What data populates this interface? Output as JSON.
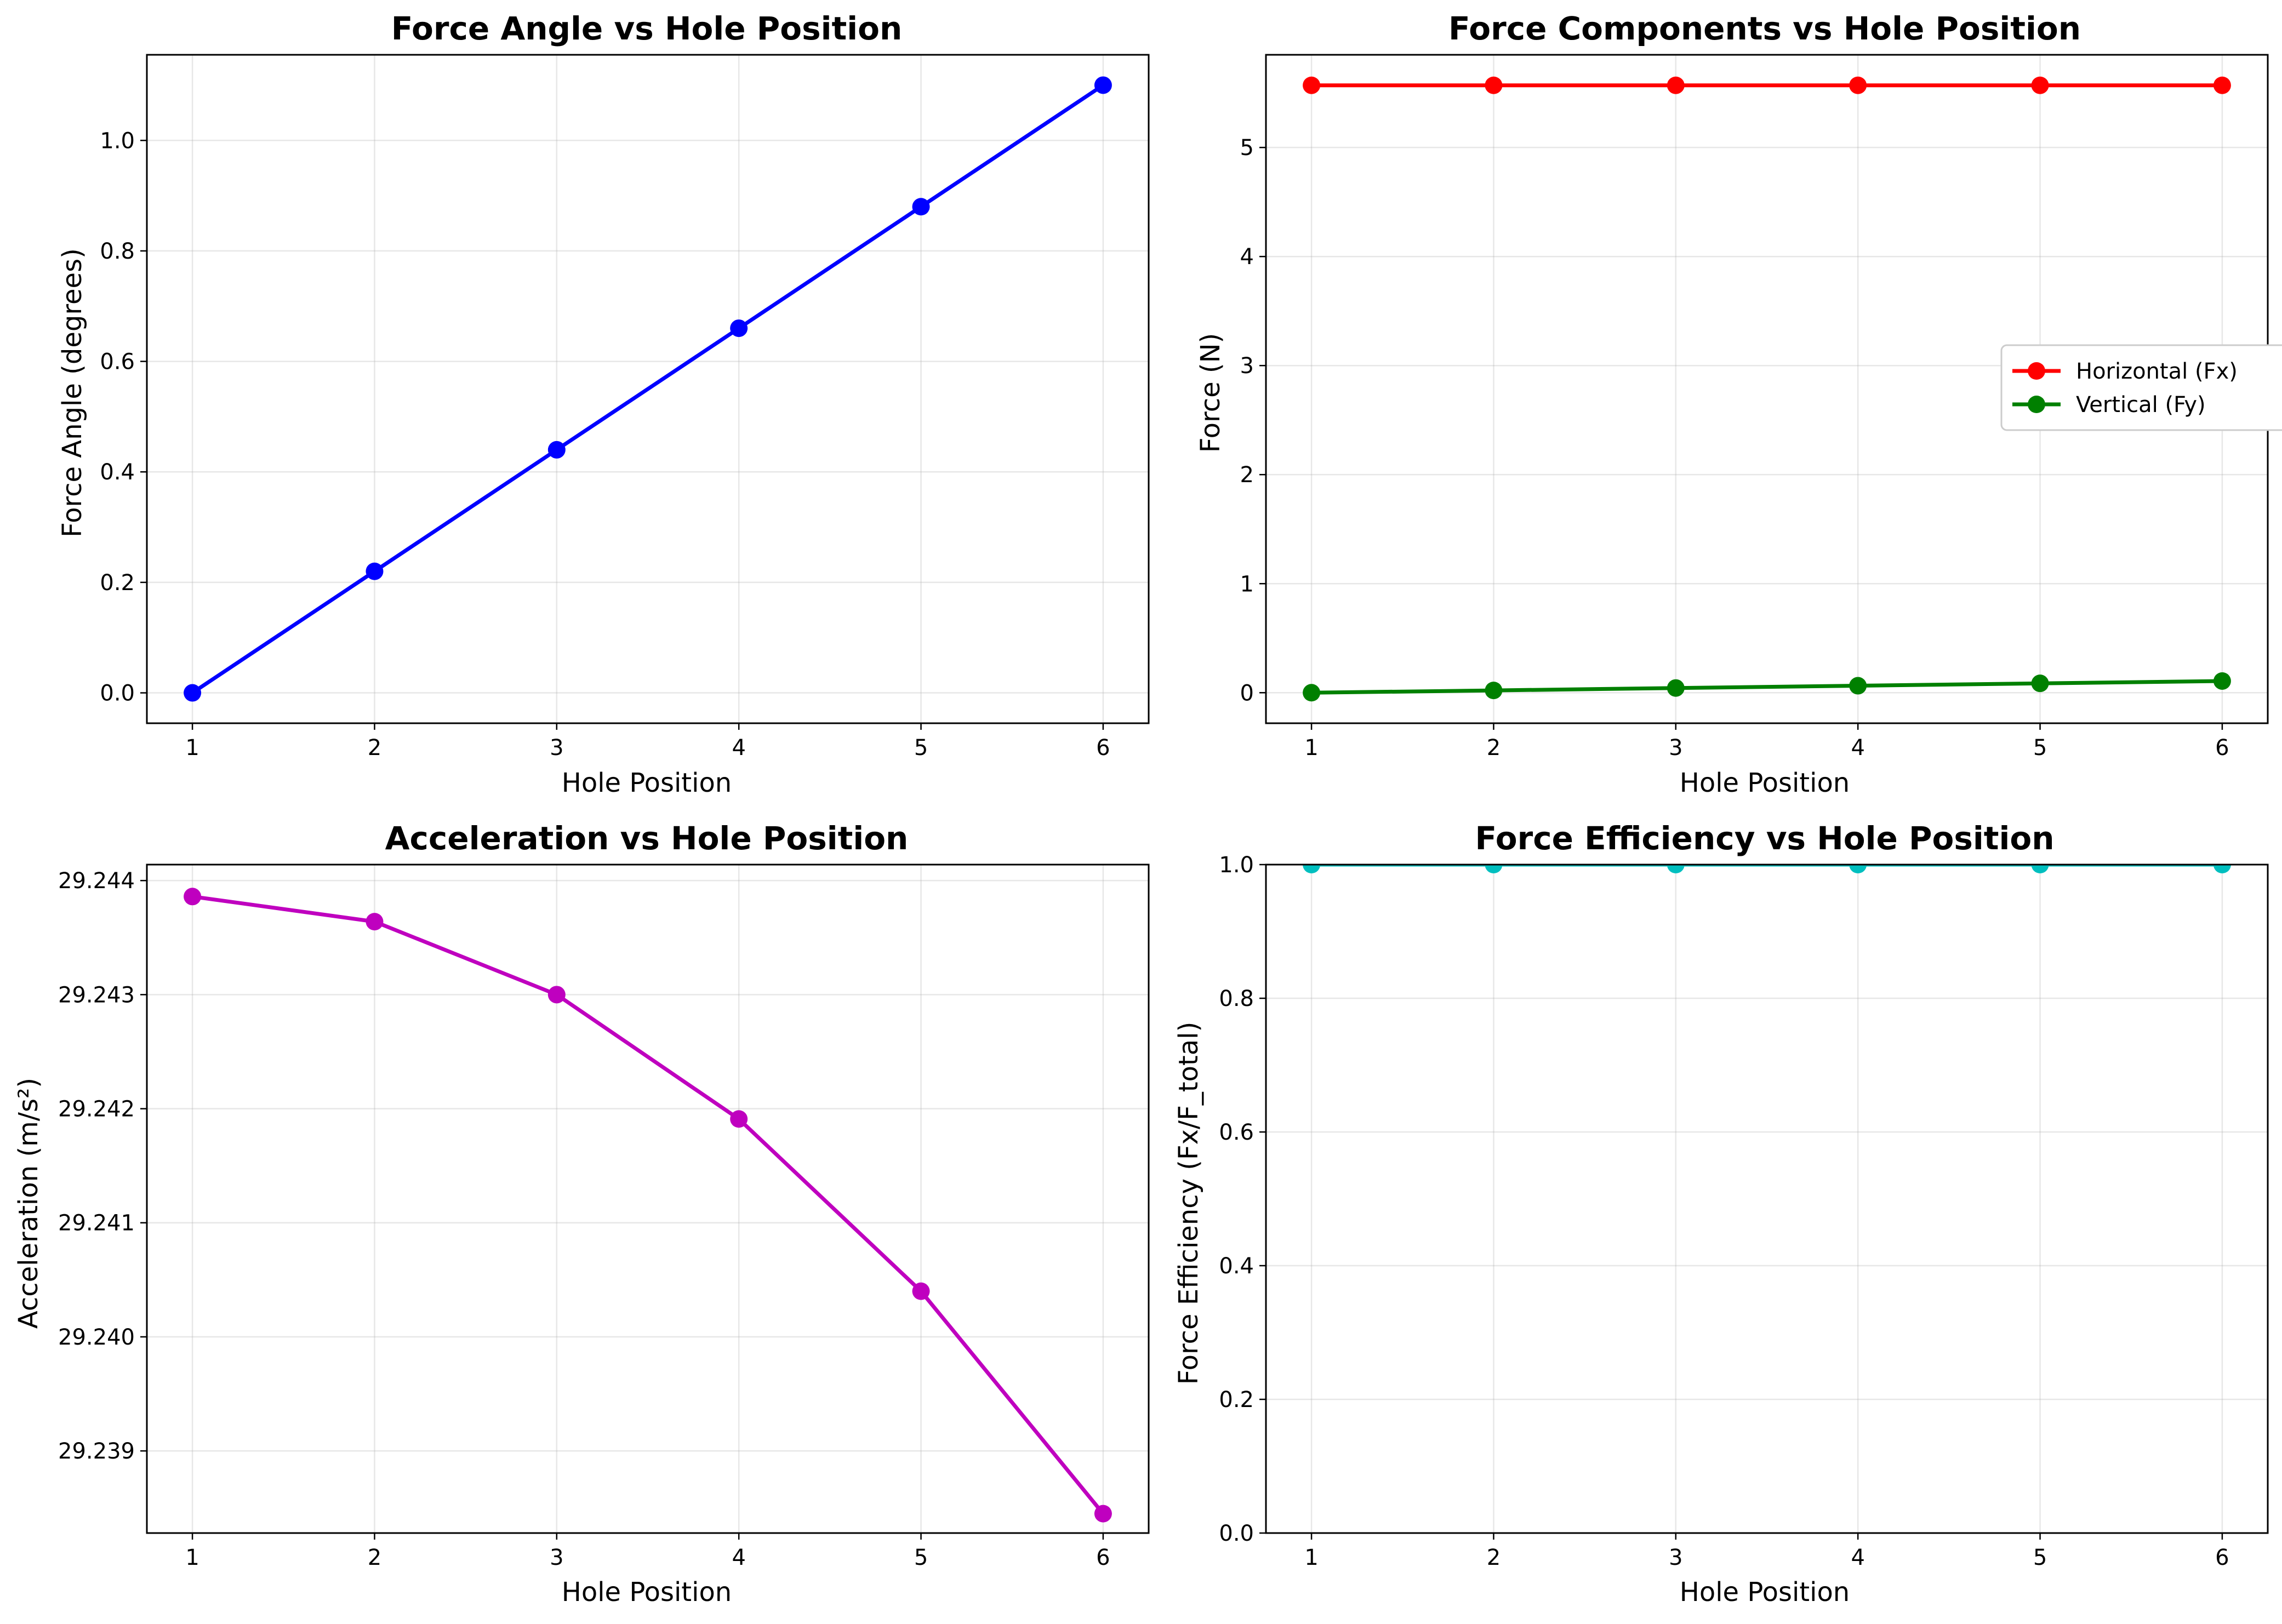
{
  "chart_data": [
    {
      "type": "line",
      "title": "Force Angle vs Hole Position",
      "xlabel": "Hole Position",
      "ylabel": "Force Angle (degrees)",
      "xlim": [
        0.75,
        6.25
      ],
      "ylim": [
        -0.055,
        1.155
      ],
      "x_ticks": [
        1,
        2,
        3,
        4,
        5,
        6
      ],
      "y_ticks": [
        0.0,
        0.2,
        0.4,
        0.6,
        0.8,
        1.0
      ],
      "y_tick_labels": [
        "0.0",
        "0.2",
        "0.4",
        "0.6",
        "0.8",
        "1.0"
      ],
      "grid": true,
      "legend": null,
      "series": [
        {
          "color": "#0000ff",
          "x": [
            1,
            2,
            3,
            4,
            5,
            6
          ],
          "values": [
            0.0,
            0.22,
            0.44,
            0.66,
            0.88,
            1.1
          ]
        }
      ]
    },
    {
      "type": "line",
      "title": "Force Components vs Hole Position",
      "xlabel": "Hole Position",
      "ylabel": "Force (N)",
      "xlim": [
        0.75,
        6.25
      ],
      "ylim": [
        -0.28,
        5.85
      ],
      "x_ticks": [
        1,
        2,
        3,
        4,
        5,
        6
      ],
      "y_ticks": [
        0,
        1,
        2,
        3,
        4,
        5
      ],
      "y_tick_labels": [
        "0",
        "1",
        "2",
        "3",
        "4",
        "5"
      ],
      "grid": true,
      "legend": "center-right",
      "series": [
        {
          "name": "Horizontal (Fx)",
          "color": "#ff0000",
          "x": [
            1,
            2,
            3,
            4,
            5,
            6
          ],
          "values": [
            5.57,
            5.57,
            5.57,
            5.57,
            5.57,
            5.57
          ]
        },
        {
          "name": "Vertical (Fy)",
          "color": "#008000",
          "x": [
            1,
            2,
            3,
            4,
            5,
            6
          ],
          "values": [
            0.0,
            0.021,
            0.043,
            0.064,
            0.086,
            0.107
          ]
        }
      ]
    },
    {
      "type": "line",
      "title": "Acceleration vs Hole Position",
      "xlabel": "Hole Position",
      "ylabel": "Acceleration (m/s²)",
      "xlim": [
        0.75,
        6.25
      ],
      "ylim": [
        29.23828,
        29.24414
      ],
      "x_ticks": [
        1,
        2,
        3,
        4,
        5,
        6
      ],
      "y_ticks": [
        29.239,
        29.24,
        29.241,
        29.242,
        29.243,
        29.244
      ],
      "y_tick_labels": [
        "29.239",
        "29.240",
        "29.241",
        "29.242",
        "29.243",
        "29.244"
      ],
      "grid": true,
      "legend": null,
      "series": [
        {
          "color": "#bf00bf",
          "x": [
            1,
            2,
            3,
            4,
            5,
            6
          ],
          "values": [
            29.24386,
            29.24364,
            29.243,
            29.24191,
            29.2404,
            29.23845
          ]
        }
      ]
    },
    {
      "type": "line",
      "title": "Force Efficiency vs Hole Position",
      "xlabel": "Hole Position",
      "ylabel": "Force Efficiency (Fx/F_total)",
      "xlim": [
        0.75,
        6.25
      ],
      "ylim": [
        0.0,
        1.0
      ],
      "x_ticks": [
        1,
        2,
        3,
        4,
        5,
        6
      ],
      "y_ticks": [
        0.0,
        0.2,
        0.4,
        0.6,
        0.8,
        1.0
      ],
      "y_tick_labels": [
        "0.0",
        "0.2",
        "0.4",
        "0.6",
        "0.8",
        "1.0"
      ],
      "grid": true,
      "legend": null,
      "series": [
        {
          "color": "#00bfbf",
          "x": [
            1,
            2,
            3,
            4,
            5,
            6
          ],
          "values": [
            1.0,
            1.0,
            1.0,
            1.0,
            1.0,
            1.0
          ]
        }
      ]
    }
  ]
}
